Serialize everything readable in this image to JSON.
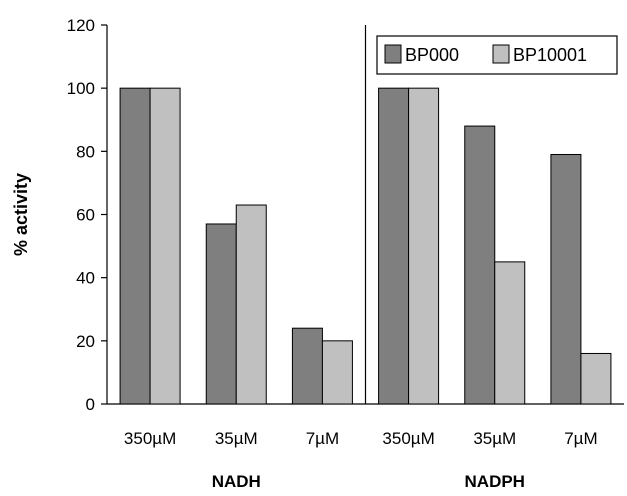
{
  "chart_data": {
    "type": "bar",
    "ylabel": "% activity",
    "ylim": [
      0,
      120
    ],
    "yticks": [
      0,
      20,
      40,
      60,
      80,
      100,
      120
    ],
    "grid": false,
    "legend_position": "top-right",
    "groups": [
      {
        "name": "NADH",
        "categories": [
          "350µM",
          "35µM",
          "7µM"
        ]
      },
      {
        "name": "NADPH",
        "categories": [
          "350µM",
          "35µM",
          "7µM"
        ]
      }
    ],
    "series": [
      {
        "name": "BP000",
        "color": "#7f7f7f",
        "values": [
          100,
          57,
          24,
          100,
          88,
          79
        ]
      },
      {
        "name": "BP10001",
        "color": "#c0c0c0",
        "values": [
          100,
          63,
          20,
          100,
          45,
          16
        ]
      }
    ]
  }
}
